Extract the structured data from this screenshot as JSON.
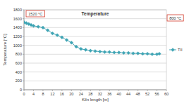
{
  "chart_data": {
    "type": "line",
    "title": "Temperature",
    "x_label": "Kiln length [m]",
    "y_label": "Temperature [°C]",
    "annotations": [
      "1520 °C",
      "800 °C"
    ],
    "series": [
      {
        "name": "TII",
        "color": "#3fa4b4",
        "marker": "diamond",
        "line_style": "solid",
        "x": [
          0,
          1,
          2,
          3,
          4,
          6,
          8,
          10,
          12,
          14,
          16,
          18,
          20,
          22,
          24,
          26,
          28,
          30,
          32,
          34,
          36,
          38,
          40,
          42,
          44,
          46,
          48,
          50,
          52,
          54,
          56,
          57
        ],
        "values": [
          1520,
          1500,
          1480,
          1460,
          1440,
          1420,
          1400,
          1340,
          1270,
          1230,
          1180,
          1120,
          1060,
          970,
          920,
          900,
          880,
          870,
          860,
          850,
          850,
          840,
          840,
          830,
          830,
          820,
          820,
          810,
          810,
          800,
          800,
          810
        ]
      }
    ],
    "xlim": [
      0,
      60
    ],
    "xticks": [
      0,
      4,
      8,
      12,
      16,
      20,
      24,
      28,
      32,
      36,
      40,
      44,
      48,
      52,
      56,
      60
    ],
    "ylim": [
      0,
      1800
    ],
    "yticks": [
      0,
      200,
      400,
      600,
      800,
      1000,
      1200,
      1400,
      1600,
      1800
    ],
    "grid": true,
    "legend": "right"
  }
}
